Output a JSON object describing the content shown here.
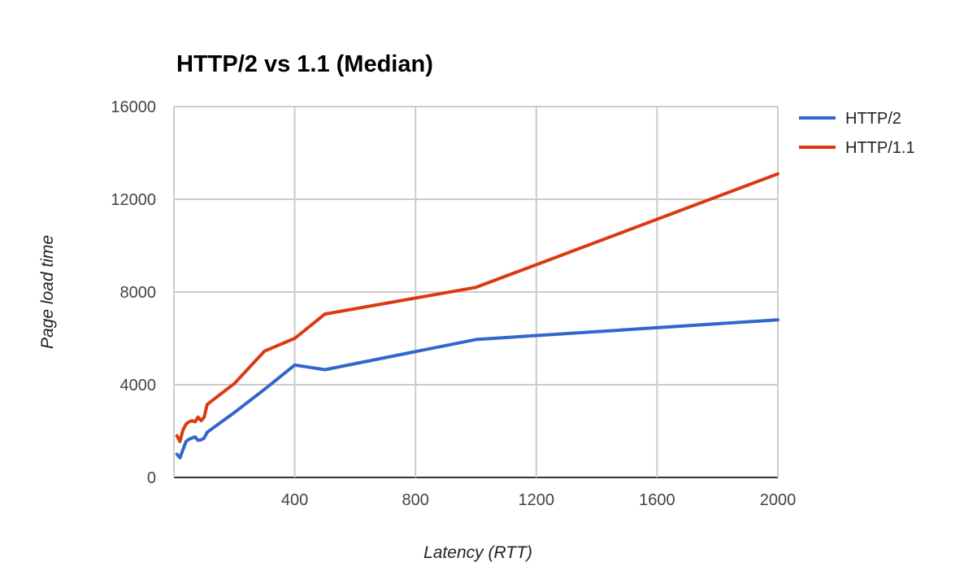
{
  "chart_data": {
    "type": "line",
    "title": "HTTP/2 vs 1.1 (Median)",
    "xlabel": "Latency (RTT)",
    "ylabel": "Page load time",
    "xlim": [
      0,
      2000
    ],
    "ylim": [
      0,
      16000
    ],
    "x_ticks": [
      400,
      800,
      1200,
      1600,
      2000
    ],
    "y_ticks": [
      0,
      4000,
      8000,
      12000,
      16000
    ],
    "grid": true,
    "legend_position": "top-right",
    "series": [
      {
        "name": "HTTP/2",
        "color": "#3366cc",
        "points": [
          [
            10,
            1000
          ],
          [
            20,
            850
          ],
          [
            30,
            1200
          ],
          [
            40,
            1550
          ],
          [
            50,
            1650
          ],
          [
            60,
            1700
          ],
          [
            70,
            1750
          ],
          [
            80,
            1600
          ],
          [
            90,
            1620
          ],
          [
            100,
            1700
          ],
          [
            110,
            1950
          ],
          [
            200,
            2800
          ],
          [
            300,
            3800
          ],
          [
            400,
            4850
          ],
          [
            500,
            4650
          ],
          [
            1000,
            5950
          ],
          [
            2000,
            6800
          ]
        ]
      },
      {
        "name": "HTTP/1.1",
        "color": "#dc3912",
        "points": [
          [
            10,
            1800
          ],
          [
            20,
            1550
          ],
          [
            30,
            2050
          ],
          [
            40,
            2300
          ],
          [
            50,
            2400
          ],
          [
            60,
            2450
          ],
          [
            70,
            2400
          ],
          [
            80,
            2600
          ],
          [
            90,
            2450
          ],
          [
            100,
            2600
          ],
          [
            110,
            3150
          ],
          [
            200,
            4050
          ],
          [
            300,
            5450
          ],
          [
            400,
            6000
          ],
          [
            500,
            7050
          ],
          [
            1000,
            8200
          ],
          [
            2000,
            13100
          ]
        ]
      }
    ]
  }
}
